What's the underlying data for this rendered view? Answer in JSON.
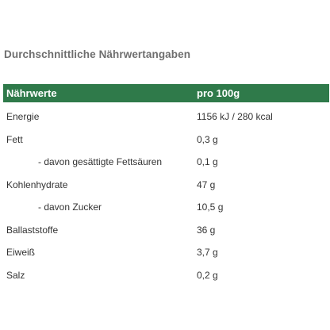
{
  "section_title": "Durchschnittliche Nährwertangaben",
  "table": {
    "header": {
      "name": "Nährwerte",
      "value": "pro 100g"
    },
    "rows": [
      {
        "name": "Energie",
        "value": "1156 kJ / 280 kcal",
        "sub": false
      },
      {
        "name": "Fett",
        "value": "0,3 g",
        "sub": false
      },
      {
        "name": "- davon gesättigte Fettsäuren",
        "value": "0,1 g",
        "sub": true
      },
      {
        "name": "Kohlenhydrate",
        "value": "47 g",
        "sub": false
      },
      {
        "name": "- davon Zucker",
        "value": "10,5 g",
        "sub": true
      },
      {
        "name": "Ballaststoffe",
        "value": "36 g",
        "sub": false
      },
      {
        "name": "Eiweiß",
        "value": "3,7 g",
        "sub": false
      },
      {
        "name": "Salz",
        "value": "0,2 g",
        "sub": false
      }
    ]
  },
  "colors": {
    "header_background": "#2f7a4a",
    "header_text": "#ffffff",
    "title_text": "#6e6e6e"
  }
}
